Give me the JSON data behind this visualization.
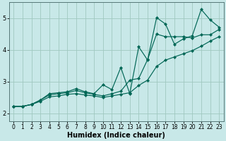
{
  "xlabel": "Humidex (Indice chaleur)",
  "bg_color": "#c8e8e8",
  "grid_color": "#a0c8c0",
  "line_color": "#006655",
  "x": [
    0,
    1,
    2,
    3,
    4,
    5,
    6,
    7,
    8,
    9,
    10,
    11,
    12,
    13,
    14,
    15,
    16,
    17,
    18,
    19,
    20,
    21,
    22,
    23
  ],
  "y_max": [
    2.22,
    2.22,
    2.28,
    2.42,
    2.62,
    2.65,
    2.68,
    2.78,
    2.68,
    2.62,
    2.9,
    2.75,
    3.45,
    2.62,
    4.1,
    3.68,
    5.02,
    4.82,
    4.18,
    4.35,
    4.45,
    5.28,
    4.95,
    4.72
  ],
  "y_mid": [
    2.22,
    2.22,
    2.28,
    2.42,
    2.58,
    2.62,
    2.65,
    2.72,
    2.65,
    2.6,
    2.55,
    2.62,
    2.7,
    3.05,
    3.1,
    3.7,
    4.5,
    4.42,
    4.42,
    4.42,
    4.38,
    4.48,
    4.48,
    4.65
  ],
  "y_min": [
    2.22,
    2.22,
    2.28,
    2.38,
    2.52,
    2.55,
    2.6,
    2.62,
    2.58,
    2.55,
    2.5,
    2.55,
    2.6,
    2.65,
    2.88,
    3.05,
    3.48,
    3.68,
    3.78,
    3.88,
    3.98,
    4.12,
    4.28,
    4.42
  ],
  "xlim": [
    -0.5,
    23.5
  ],
  "ylim": [
    1.75,
    5.5
  ],
  "yticks": [
    2,
    3,
    4,
    5
  ],
  "xticks": [
    0,
    1,
    2,
    3,
    4,
    5,
    6,
    7,
    8,
    9,
    10,
    11,
    12,
    13,
    14,
    15,
    16,
    17,
    18,
    19,
    20,
    21,
    22,
    23
  ],
  "axis_fontsize": 7,
  "tick_fontsize": 5.5
}
